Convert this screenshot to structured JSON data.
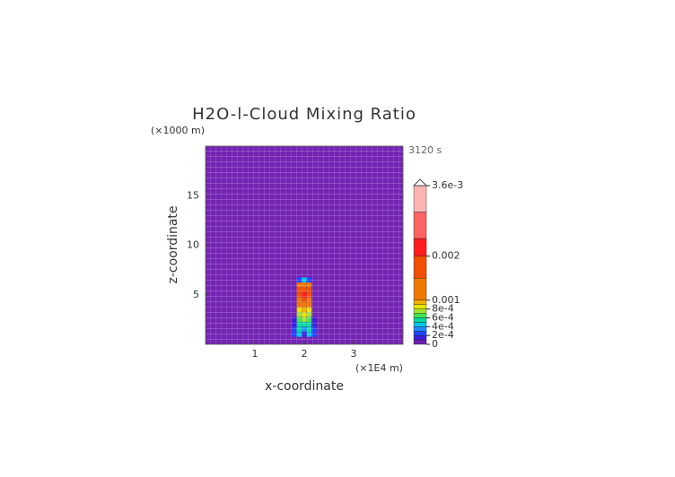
{
  "chart_data": {
    "type": "contour",
    "title": "H2O-l-Cloud Mixing Ratio",
    "y_unit_label": "(×1000 m)",
    "x_unit_label": "(×1E4 m)",
    "time_label": "3120 s",
    "x_label": "x-coordinate",
    "y_label": "z-coordinate",
    "xlim": [
      0,
      4
    ],
    "ylim": [
      0,
      20
    ],
    "xticks": [
      1,
      2,
      3
    ],
    "yticks": [
      5,
      10,
      15
    ],
    "background_color": "#7424b4",
    "field": {
      "x": [
        1.8,
        1.9,
        2.0,
        2.1,
        2.2
      ],
      "z": [
        1,
        1.5,
        2,
        2.5,
        3,
        3.5,
        4,
        4.5,
        5,
        5.5,
        6,
        6.5
      ],
      "values": [
        [
          0.0002,
          0.0004,
          0.0001,
          0.0004,
          0.0002
        ],
        [
          0.0002,
          0.0005,
          0.0003,
          0.0005,
          0.0002
        ],
        [
          0.0001,
          0.0005,
          0.0005,
          0.0005,
          0.0001
        ],
        [
          0.0001,
          0.0006,
          0.0007,
          0.0006,
          0.0001
        ],
        [
          0,
          0.0007,
          0.0008,
          0.0007,
          0
        ],
        [
          0,
          0.0008,
          0.0009,
          0.0008,
          0
        ],
        [
          0,
          0.001,
          0.0012,
          0.001,
          0
        ],
        [
          0,
          0.0013,
          0.0017,
          0.0013,
          0
        ],
        [
          0,
          0.0016,
          0.0022,
          0.0016,
          0
        ],
        [
          0,
          0.0015,
          0.0018,
          0.0015,
          0
        ],
        [
          0,
          0.0011,
          0.0013,
          0.0011,
          0
        ],
        [
          0,
          0.0002,
          0.0004,
          0.0002,
          0
        ]
      ]
    },
    "clim": [
      0,
      0.0036
    ],
    "levels": [
      0,
      0.0001,
      0.0002,
      0.0003,
      0.0004,
      0.0005,
      0.0006,
      0.0007,
      0.0008,
      0.0009,
      0.001,
      0.0015,
      0.002,
      0.0024,
      0.003,
      0.0036
    ],
    "colors": [
      "#7020b0",
      "#3c1ee0",
      "#1e46ff",
      "#1e8cff",
      "#00c8e6",
      "#00dca0",
      "#3ce650",
      "#a0e632",
      "#e6e600",
      "#f0b400",
      "#f07800",
      "#f05000",
      "#ff1e1e",
      "#ff6464",
      "#ffb4b4"
    ],
    "cticks": [
      0,
      {
        "value": 0.0002,
        "label": "2e-4"
      },
      {
        "value": 0.0004,
        "label": "4e-4"
      },
      {
        "value": 0.0006,
        "label": "6e-4"
      },
      {
        "value": 0.0008,
        "label": "8e-4"
      },
      0.001,
      0.002,
      {
        "value": 0.0036,
        "label": "3.6e-3"
      }
    ]
  }
}
